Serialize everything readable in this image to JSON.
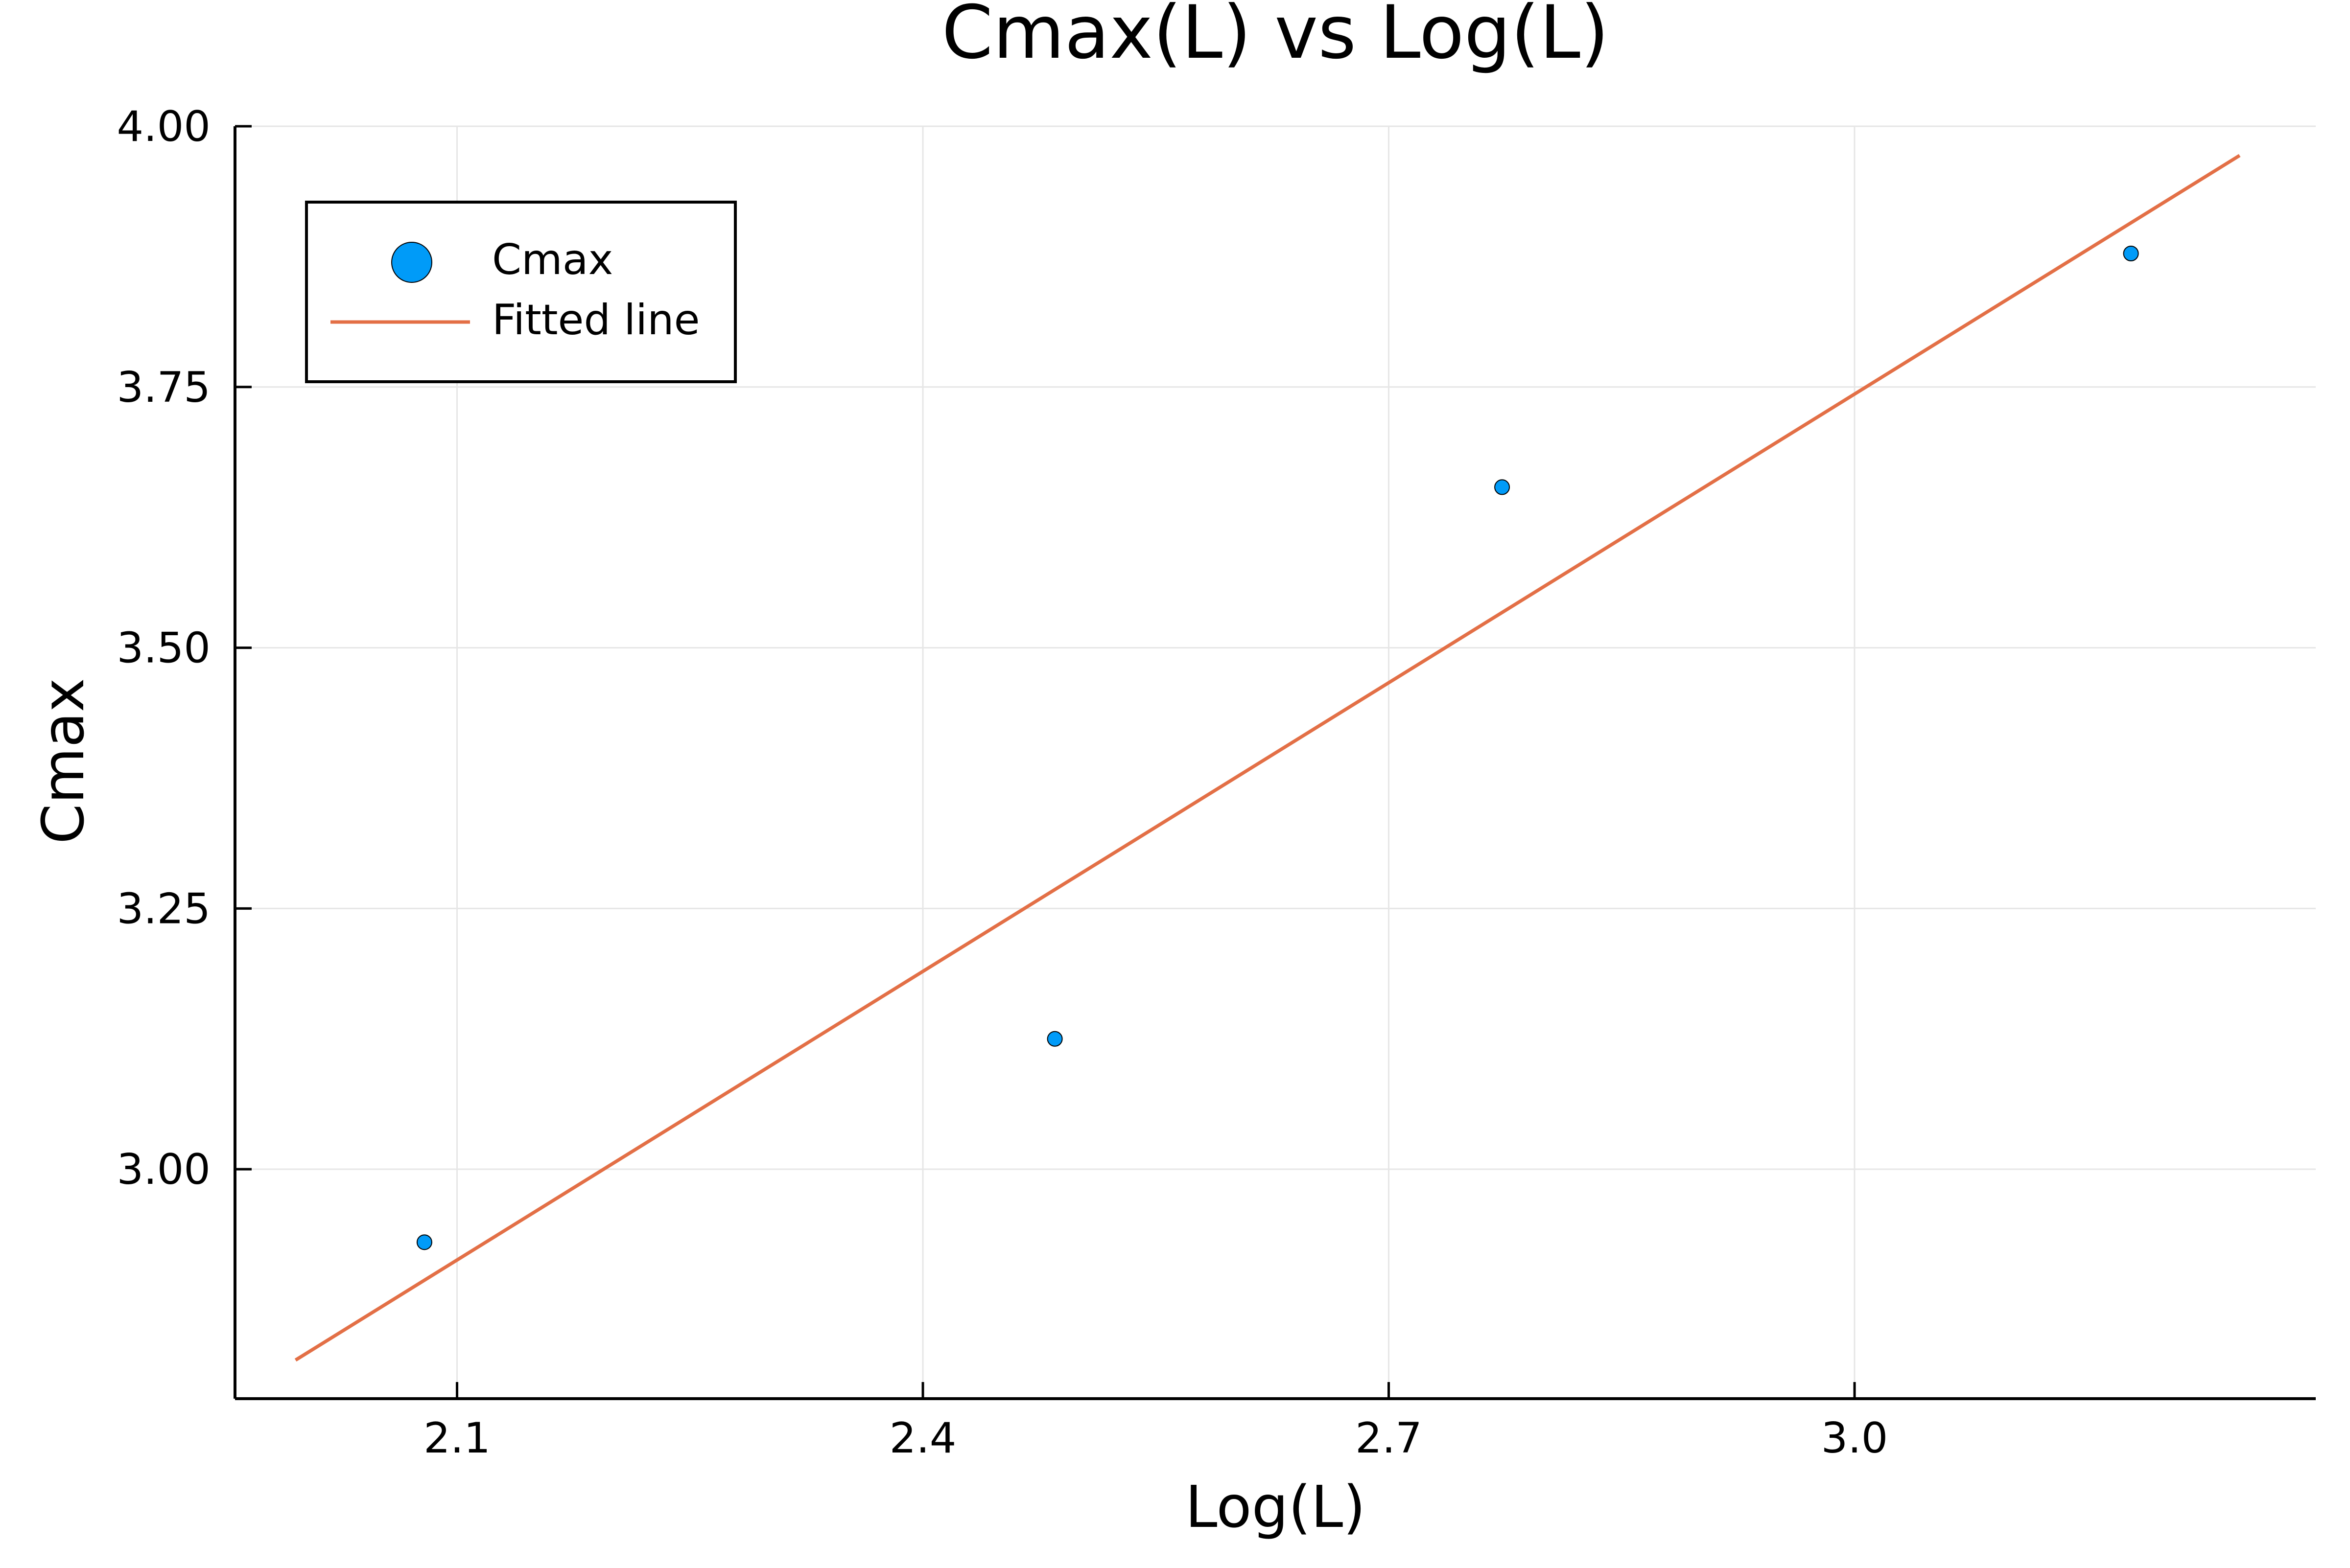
{
  "chart_data": {
    "type": "scatter",
    "title": "Cmax(L) vs Log(L)",
    "xlabel": "Log(L)",
    "ylabel": "Cmax",
    "xlim": [
      1.957,
      3.297
    ],
    "ylim": [
      2.78,
      4.0
    ],
    "xticks": [
      2.1,
      2.4,
      2.7,
      3.0
    ],
    "xtick_labels": [
      "2.1",
      "2.4",
      "2.7",
      "3.0"
    ],
    "yticks": [
      3.0,
      3.25,
      3.5,
      3.75,
      4.0
    ],
    "ytick_labels": [
      "3.00",
      "3.25",
      "3.50",
      "3.75",
      "4.00"
    ],
    "grid": true,
    "legend_position": "top-left",
    "series": [
      {
        "name": "Cmax",
        "kind": "scatter",
        "color": "#009AF9",
        "x": [
          2.079,
          2.485,
          2.773,
          3.178
        ],
        "y": [
          2.93,
          3.125,
          3.654,
          3.878
        ]
      },
      {
        "name": "Fitted line",
        "kind": "line",
        "color": "#E26F46",
        "x": [
          1.996,
          3.248
        ],
        "y": [
          2.817,
          3.972
        ]
      }
    ]
  }
}
